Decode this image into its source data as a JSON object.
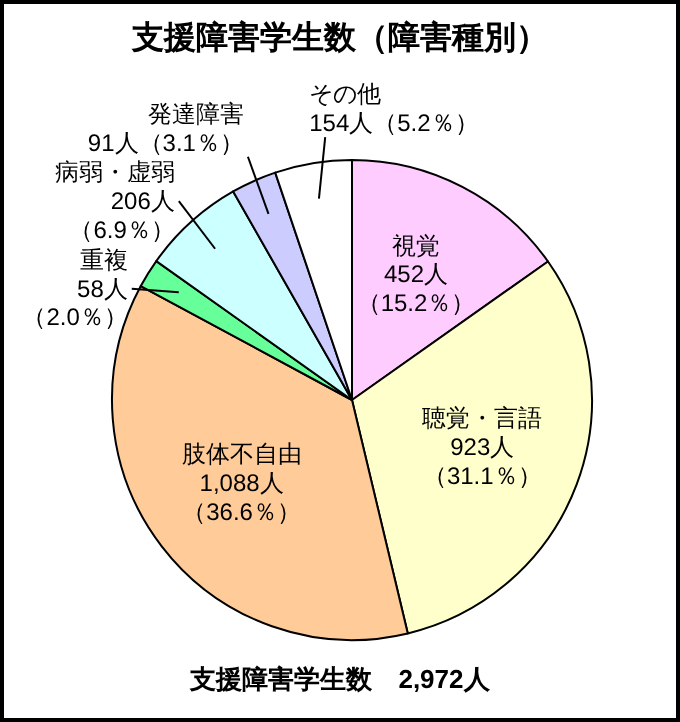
{
  "chart_data": {
    "type": "pie",
    "title": "支援障害学生数（障害種別）",
    "categories": [
      "視覚",
      "聴覚・言語",
      "肢体不自由",
      "重複",
      "病弱・虚弱",
      "発達障害",
      "その他"
    ],
    "values": [
      452,
      923,
      1088,
      58,
      206,
      91,
      154
    ],
    "colors": [
      "#ffccff",
      "#ffffcc",
      "#ffcc99",
      "#66ff99",
      "#ccffff",
      "#ccccff",
      "#ffffff"
    ],
    "value_labels": [
      "452人（15.2％）",
      "923人（31.1％）",
      "1,088人（36.6％）",
      "58人（2.0％）",
      "206人（6.9％）",
      "91人（3.1％）",
      "154人（5.2％）"
    ],
    "annotations": [
      "支援障害学生数　2,972人"
    ]
  }
}
